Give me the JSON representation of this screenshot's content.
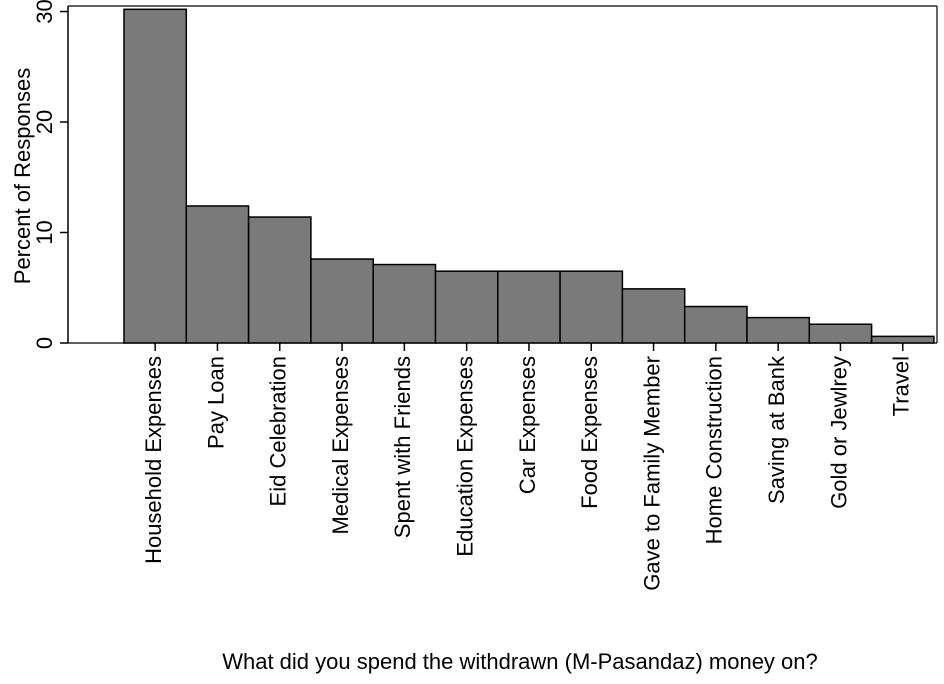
{
  "chart_data": {
    "type": "bar",
    "title": "",
    "xlabel": "What did you spend the withdrawn (M-Pasandaz) money on?",
    "ylabel": "Percent of Responses",
    "ylim": [
      0,
      30.5
    ],
    "yticks": [
      0,
      10,
      20,
      30
    ],
    "categories": [
      "Household Expenses",
      "Pay Loan",
      "Eid Celebration",
      "Medical Expenses",
      "Spent with Friends",
      "Education Expenses",
      "Car Expenses",
      "Food Expenses",
      "Gave to Family Member",
      "Home Construction",
      "Saving at Bank",
      "Gold or Jewlrey",
      "Travel"
    ],
    "values": [
      30.2,
      12.4,
      11.4,
      7.6,
      7.1,
      6.5,
      6.5,
      6.5,
      4.9,
      3.3,
      2.3,
      1.7,
      0.6
    ],
    "bar_color": "#7a7a7a",
    "bar_edge_color": "#000000",
    "grid": false,
    "legend": "none"
  }
}
